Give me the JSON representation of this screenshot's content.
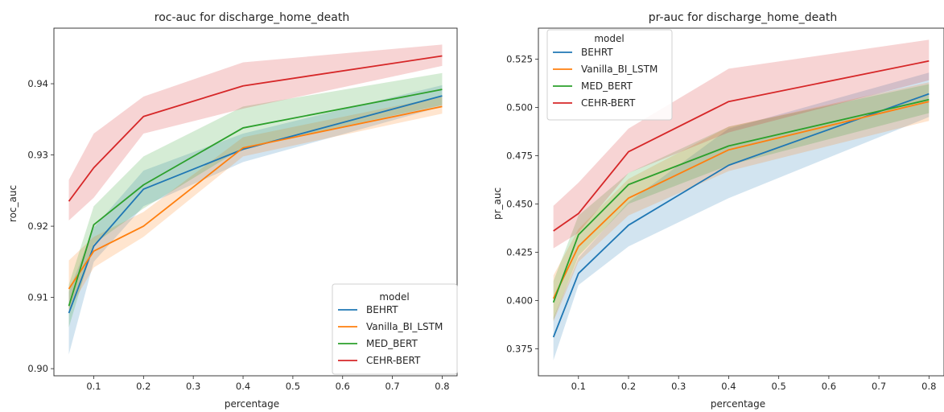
{
  "chart_data": [
    {
      "type": "line",
      "title": "roc-auc for discharge_home_death",
      "xlabel": "percentage",
      "ylabel": "roc_auc",
      "xlim": [
        0.02,
        0.83
      ],
      "ylim": [
        0.899,
        0.9478
      ],
      "xticks": [
        0.1,
        0.2,
        0.3,
        0.4,
        0.5,
        0.6,
        0.7,
        0.8
      ],
      "xtick_labels": [
        "0.1",
        "0.2",
        "0.3",
        "0.4",
        "0.5",
        "0.6",
        "0.7",
        "0.8"
      ],
      "yticks": [
        0.9,
        0.91,
        0.92,
        0.93,
        0.94
      ],
      "ytick_labels": [
        "0.90",
        "0.91",
        "0.92",
        "0.93",
        "0.94"
      ],
      "legend": {
        "title": "model",
        "position": "lower right"
      },
      "x": [
        0.05,
        0.1,
        0.2,
        0.4,
        0.8
      ],
      "series": [
        {
          "name": "BEHRT",
          "color": "#1f77b4",
          "values": [
            0.9078,
            0.9172,
            0.9252,
            0.9308,
            0.9383
          ],
          "lower": [
            0.902,
            0.915,
            0.9228,
            0.929,
            0.9368
          ],
          "upper": [
            0.9108,
            0.9198,
            0.9278,
            0.933,
            0.9398
          ]
        },
        {
          "name": "Vanilla_BI_LSTM",
          "color": "#ff7f0e",
          "values": [
            0.9112,
            0.9165,
            0.92,
            0.931,
            0.9368
          ],
          "lower": [
            0.9082,
            0.9142,
            0.9185,
            0.9298,
            0.9358
          ],
          "upper": [
            0.9152,
            0.9185,
            0.922,
            0.9325,
            0.9382
          ]
        },
        {
          "name": "MED_BERT",
          "color": "#2ca02c",
          "values": [
            0.9088,
            0.9202,
            0.9258,
            0.9338,
            0.9392
          ],
          "lower": [
            0.9058,
            0.9175,
            0.9225,
            0.931,
            0.937
          ],
          "upper": [
            0.9118,
            0.9228,
            0.9298,
            0.9368,
            0.9415
          ]
        },
        {
          "name": "CEHR-BERT",
          "color": "#d62728",
          "values": [
            0.9235,
            0.9282,
            0.9354,
            0.9397,
            0.9439
          ],
          "lower": [
            0.9208,
            0.924,
            0.933,
            0.9365,
            0.9425
          ],
          "upper": [
            0.9265,
            0.933,
            0.9382,
            0.943,
            0.9455
          ]
        }
      ]
    },
    {
      "type": "line",
      "title": "pr-auc for discharge_home_death",
      "xlabel": "percentage",
      "ylabel": "pr_auc",
      "xlim": [
        0.02,
        0.83
      ],
      "ylim": [
        0.361,
        0.541
      ],
      "xticks": [
        0.1,
        0.2,
        0.3,
        0.4,
        0.5,
        0.6,
        0.7,
        0.8
      ],
      "xtick_labels": [
        "0.1",
        "0.2",
        "0.3",
        "0.4",
        "0.5",
        "0.6",
        "0.7",
        "0.8"
      ],
      "yticks": [
        0.375,
        0.4,
        0.425,
        0.45,
        0.475,
        0.5,
        0.525
      ],
      "ytick_labels": [
        "0.375",
        "0.400",
        "0.425",
        "0.450",
        "0.475",
        "0.500",
        "0.525"
      ],
      "legend": {
        "title": "model",
        "position": "upper left"
      },
      "x": [
        0.05,
        0.1,
        0.2,
        0.4,
        0.8
      ],
      "series": [
        {
          "name": "BEHRT",
          "color": "#1f77b4",
          "values": [
            0.381,
            0.414,
            0.439,
            0.47,
            0.507
          ],
          "lower": [
            0.369,
            0.408,
            0.428,
            0.453,
            0.495
          ],
          "upper": [
            0.391,
            0.422,
            0.451,
            0.489,
            0.518
          ]
        },
        {
          "name": "Vanilla_BI_LSTM",
          "color": "#ff7f0e",
          "values": [
            0.401,
            0.428,
            0.453,
            0.478,
            0.503
          ],
          "lower": [
            0.389,
            0.42,
            0.444,
            0.467,
            0.493
          ],
          "upper": [
            0.413,
            0.437,
            0.463,
            0.49,
            0.513
          ]
        },
        {
          "name": "MED_BERT",
          "color": "#2ca02c",
          "values": [
            0.399,
            0.434,
            0.46,
            0.48,
            0.504
          ],
          "lower": [
            0.39,
            0.423,
            0.45,
            0.47,
            0.497
          ],
          "upper": [
            0.41,
            0.444,
            0.466,
            0.49,
            0.512
          ]
        },
        {
          "name": "CEHR-BERT",
          "color": "#d62728",
          "values": [
            0.436,
            0.445,
            0.477,
            0.503,
            0.524
          ],
          "lower": [
            0.427,
            0.435,
            0.466,
            0.487,
            0.514
          ],
          "upper": [
            0.449,
            0.461,
            0.489,
            0.52,
            0.535
          ]
        }
      ]
    }
  ]
}
